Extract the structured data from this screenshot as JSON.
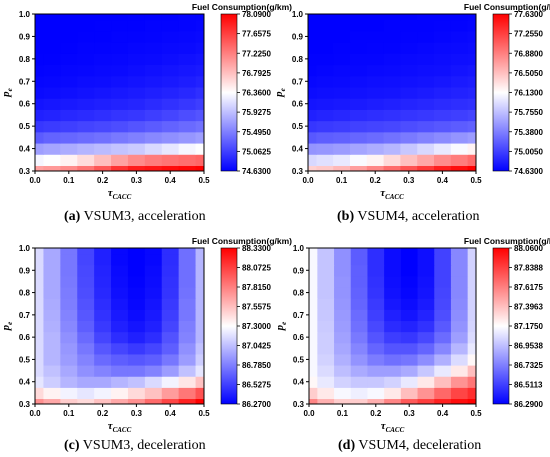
{
  "chart_data": [
    {
      "type": "heatmap",
      "caption_letter": "(a)",
      "caption_text": " VSUM3, acceleration",
      "legend_title": "Fuel Consumption(g/km)",
      "xlabel_main": "τ",
      "xlabel_sub": "CACC",
      "ylabel_main": "p",
      "ylabel_sub": "e",
      "x_ticks": [
        "0.0",
        "0.1",
        "0.2",
        "0.3",
        "0.4",
        "0.5"
      ],
      "y_ticks": [
        "0.3",
        "0.4",
        "0.5",
        "0.6",
        "0.7",
        "0.8",
        "0.9",
        "1.0"
      ],
      "xlim": [
        0.0,
        0.5
      ],
      "ylim": [
        0.3,
        1.0
      ],
      "colorbar_ticks": [
        "78.0900",
        "77.6575",
        "77.2250",
        "76.7925",
        "76.3600",
        "75.9275",
        "75.4950",
        "75.0625",
        "74.6300"
      ],
      "zlim": [
        74.63,
        78.09
      ],
      "colors": [
        "#0000ff",
        "#ffffff",
        "#ff0000"
      ],
      "x": [
        0.0,
        0.05,
        0.1,
        0.15,
        0.2,
        0.25,
        0.3,
        0.35,
        0.4,
        0.45,
        0.5
      ],
      "y": [
        0.3,
        0.35,
        0.4,
        0.45,
        0.5,
        0.55,
        0.6,
        0.65,
        0.7,
        0.75,
        0.8,
        0.85,
        0.9,
        0.95,
        1.0
      ],
      "z": [
        [
          77.0,
          77.05,
          77.15,
          77.3,
          77.5,
          77.75,
          77.9,
          77.95,
          78.0,
          78.05,
          78.09
        ],
        [
          76.3,
          76.35,
          76.45,
          76.6,
          76.8,
          77.0,
          77.15,
          77.25,
          77.3,
          77.35,
          77.4
        ],
        [
          75.7,
          75.75,
          75.8,
          75.85,
          75.9,
          75.95,
          76.0,
          76.1,
          76.2,
          76.3,
          76.35
        ],
        [
          75.25,
          75.3,
          75.33,
          75.36,
          75.4,
          75.45,
          75.5,
          75.55,
          75.6,
          75.65,
          75.7
        ],
        [
          75.0,
          75.03,
          75.06,
          75.09,
          75.12,
          75.15,
          75.2,
          75.25,
          75.3,
          75.35,
          75.4
        ],
        [
          74.85,
          74.87,
          74.9,
          74.92,
          74.95,
          74.98,
          75.0,
          75.05,
          75.1,
          75.15,
          75.2
        ],
        [
          74.76,
          74.78,
          74.8,
          74.82,
          74.84,
          74.86,
          74.88,
          74.92,
          74.96,
          75.0,
          75.05
        ],
        [
          74.7,
          74.71,
          74.73,
          74.75,
          74.77,
          74.79,
          74.81,
          74.84,
          74.87,
          74.9,
          74.95
        ],
        [
          74.67,
          74.68,
          74.69,
          74.71,
          74.72,
          74.74,
          74.76,
          74.78,
          74.8,
          74.83,
          74.86
        ],
        [
          74.65,
          74.66,
          74.67,
          74.68,
          74.69,
          74.7,
          74.72,
          74.74,
          74.76,
          74.78,
          74.8
        ],
        [
          74.64,
          74.64,
          74.65,
          74.66,
          74.67,
          74.68,
          74.69,
          74.7,
          74.72,
          74.74,
          74.76
        ],
        [
          74.63,
          74.63,
          74.64,
          74.65,
          74.65,
          74.66,
          74.67,
          74.68,
          74.69,
          74.7,
          74.72
        ],
        [
          74.63,
          74.63,
          74.63,
          74.64,
          74.64,
          74.65,
          74.65,
          74.66,
          74.67,
          74.68,
          74.69
        ],
        [
          74.63,
          74.63,
          74.63,
          74.63,
          74.64,
          74.64,
          74.64,
          74.65,
          74.65,
          74.66,
          74.67
        ],
        [
          74.63,
          74.63,
          74.63,
          74.63,
          74.63,
          74.63,
          74.64,
          74.64,
          74.64,
          74.65,
          74.65
        ]
      ]
    },
    {
      "type": "heatmap",
      "caption_letter": "(b)",
      "caption_text": " VSUM4, acceleration",
      "legend_title": "Fuel Consumption(g/km)",
      "xlabel_main": "τ",
      "xlabel_sub": "CACC",
      "ylabel_main": "p",
      "ylabel_sub": "e",
      "x_ticks": [
        "0.0",
        "0.1",
        "0.2",
        "0.3",
        "0.4",
        "0.5"
      ],
      "y_ticks": [
        "0.3",
        "0.4",
        "0.5",
        "0.6",
        "0.7",
        "0.8",
        "0.9",
        "1.0"
      ],
      "xlim": [
        0.0,
        0.5
      ],
      "ylim": [
        0.3,
        1.0
      ],
      "colorbar_ticks": [
        "77.6300",
        "77.2550",
        "76.8800",
        "76.5050",
        "76.1300",
        "75.7550",
        "75.3800",
        "75.0050",
        "74.6300"
      ],
      "zlim": [
        74.63,
        77.63
      ],
      "colors": [
        "#0000ff",
        "#ffffff",
        "#ff0000"
      ],
      "x": [
        0.0,
        0.05,
        0.1,
        0.15,
        0.2,
        0.25,
        0.3,
        0.35,
        0.4,
        0.45,
        0.5
      ],
      "y": [
        0.3,
        0.35,
        0.4,
        0.45,
        0.5,
        0.55,
        0.6,
        0.65,
        0.7,
        0.75,
        0.8,
        0.85,
        0.9,
        0.95,
        1.0
      ],
      "z": [
        [
          76.4,
          76.45,
          76.55,
          76.7,
          76.85,
          77.0,
          77.15,
          77.3,
          77.45,
          77.55,
          77.63
        ],
        [
          75.9,
          75.95,
          76.0,
          76.1,
          76.2,
          76.35,
          76.5,
          76.65,
          76.8,
          76.9,
          77.0
        ],
        [
          75.5,
          75.52,
          75.55,
          75.6,
          75.65,
          75.7,
          75.8,
          75.9,
          76.0,
          76.1,
          76.2
        ],
        [
          75.15,
          75.18,
          75.2,
          75.23,
          75.26,
          75.3,
          75.35,
          75.4,
          75.45,
          75.5,
          75.55
        ],
        [
          74.95,
          74.97,
          74.99,
          75.01,
          75.03,
          75.05,
          75.08,
          75.11,
          75.14,
          75.17,
          75.2
        ],
        [
          74.82,
          74.84,
          74.86,
          74.88,
          74.9,
          74.92,
          74.94,
          74.96,
          74.98,
          75.0,
          75.03
        ],
        [
          74.75,
          74.76,
          74.77,
          74.78,
          74.8,
          74.82,
          74.84,
          74.86,
          74.88,
          74.9,
          74.92
        ],
        [
          74.7,
          74.71,
          74.72,
          74.73,
          74.74,
          74.75,
          74.77,
          74.79,
          74.81,
          74.83,
          74.85
        ],
        [
          74.67,
          74.68,
          74.69,
          74.7,
          74.71,
          74.72,
          74.73,
          74.74,
          74.76,
          74.78,
          74.8
        ],
        [
          74.65,
          74.66,
          74.67,
          74.67,
          74.68,
          74.69,
          74.7,
          74.71,
          74.72,
          74.74,
          74.76
        ],
        [
          74.64,
          74.64,
          74.65,
          74.66,
          74.66,
          74.67,
          74.68,
          74.69,
          74.7,
          74.71,
          74.72
        ],
        [
          74.63,
          74.63,
          74.64,
          74.64,
          74.65,
          74.65,
          74.66,
          74.67,
          74.68,
          74.69,
          74.7
        ],
        [
          74.63,
          74.63,
          74.63,
          74.64,
          74.64,
          74.64,
          74.65,
          74.65,
          74.66,
          74.67,
          74.68
        ],
        [
          74.63,
          74.63,
          74.63,
          74.63,
          74.63,
          74.64,
          74.64,
          74.64,
          74.65,
          74.65,
          74.66
        ],
        [
          74.63,
          74.63,
          74.63,
          74.63,
          74.63,
          74.63,
          74.63,
          74.64,
          74.64,
          74.64,
          74.65
        ]
      ]
    },
    {
      "type": "heatmap",
      "caption_letter": "(c)",
      "caption_text": " VSUM3, deceleration",
      "legend_title": "Fuel Consumption(g/km)",
      "xlabel_main": "τ",
      "xlabel_sub": "CACC",
      "ylabel_main": "p",
      "ylabel_sub": "e",
      "x_ticks": [
        "0.0",
        "0.1",
        "0.2",
        "0.3",
        "0.4",
        "0.5"
      ],
      "y_ticks": [
        "0.3",
        "0.4",
        "0.5",
        "0.6",
        "0.7",
        "0.8",
        "0.9",
        "1.0"
      ],
      "xlim": [
        0.0,
        0.5
      ],
      "ylim": [
        0.3,
        1.0
      ],
      "colorbar_ticks": [
        "88.3300",
        "88.0725",
        "87.8150",
        "87.5575",
        "87.3000",
        "87.0425",
        "86.7850",
        "86.5275",
        "86.2700"
      ],
      "zlim": [
        86.27,
        88.33
      ],
      "colors": [
        "#0000ff",
        "#ffffff",
        "#ff0000"
      ],
      "x": [
        0.0,
        0.05,
        0.1,
        0.15,
        0.2,
        0.25,
        0.3,
        0.35,
        0.4,
        0.45,
        0.5
      ],
      "y": [
        0.3,
        0.35,
        0.4,
        0.45,
        0.5,
        0.55,
        0.6,
        0.65,
        0.7,
        0.75,
        0.8,
        0.85,
        0.9,
        0.95,
        1.0
      ],
      "z": [
        [
          87.75,
          87.65,
          87.5,
          87.45,
          87.55,
          87.65,
          87.75,
          87.9,
          88.05,
          88.2,
          88.33
        ],
        [
          87.45,
          87.35,
          87.25,
          87.2,
          87.25,
          87.35,
          87.45,
          87.55,
          87.7,
          87.85,
          88.0
        ],
        [
          87.2,
          87.1,
          87.0,
          86.95,
          86.95,
          87.0,
          87.05,
          87.15,
          87.25,
          87.4,
          87.55
        ],
        [
          87.15,
          87.05,
          86.95,
          86.85,
          86.8,
          86.75,
          86.75,
          86.8,
          86.9,
          87.05,
          87.2
        ],
        [
          87.15,
          87.0,
          86.9,
          86.8,
          86.7,
          86.65,
          86.62,
          86.65,
          86.75,
          86.9,
          87.1
        ],
        [
          87.15,
          87.0,
          86.88,
          86.75,
          86.62,
          86.55,
          86.5,
          86.55,
          86.65,
          86.85,
          87.05
        ],
        [
          87.15,
          87.0,
          86.85,
          86.7,
          86.55,
          86.45,
          86.4,
          86.45,
          86.6,
          86.8,
          87.0
        ],
        [
          87.15,
          86.98,
          86.82,
          86.65,
          86.5,
          86.4,
          86.35,
          86.4,
          86.55,
          86.78,
          87.0
        ],
        [
          87.15,
          86.97,
          86.8,
          86.62,
          86.47,
          86.37,
          86.32,
          86.37,
          86.52,
          86.75,
          87.0
        ],
        [
          87.15,
          86.96,
          86.78,
          86.6,
          86.45,
          86.35,
          86.3,
          86.35,
          86.5,
          86.75,
          87.0
        ],
        [
          87.15,
          86.95,
          86.77,
          86.58,
          86.43,
          86.33,
          86.29,
          86.33,
          86.48,
          86.73,
          87.0
        ],
        [
          87.15,
          86.95,
          86.76,
          86.57,
          86.42,
          86.32,
          86.28,
          86.32,
          86.47,
          86.72,
          87.0
        ],
        [
          87.15,
          86.95,
          86.75,
          86.56,
          86.41,
          86.31,
          86.27,
          86.31,
          86.46,
          86.72,
          87.0
        ],
        [
          87.15,
          86.95,
          86.75,
          86.55,
          86.4,
          86.3,
          86.27,
          86.3,
          86.45,
          86.72,
          87.0
        ],
        [
          87.15,
          86.95,
          86.75,
          86.55,
          86.4,
          86.3,
          86.27,
          86.3,
          86.45,
          86.72,
          87.0
        ]
      ]
    },
    {
      "type": "heatmap",
      "caption_letter": "(d)",
      "caption_text": " VSUM4, deceleration",
      "legend_title": "Fuel Consumption(g/km)",
      "xlabel_main": "τ",
      "xlabel_sub": "CACC",
      "ylabel_main": "p",
      "ylabel_sub": "e",
      "x_ticks": [
        "0.0",
        "0.1",
        "0.2",
        "0.3",
        "0.4",
        "0.5"
      ],
      "y_ticks": [
        "0.3",
        "0.4",
        "0.5",
        "0.6",
        "0.7",
        "0.8",
        "0.9",
        "1.0"
      ],
      "xlim": [
        0.0,
        0.5
      ],
      "ylim": [
        0.3,
        1.0
      ],
      "colorbar_ticks": [
        "88.0600",
        "87.8388",
        "87.6175",
        "87.3963",
        "87.1750",
        "86.9538",
        "86.7325",
        "86.5113",
        "86.2900"
      ],
      "zlim": [
        86.29,
        88.06
      ],
      "colors": [
        "#0000ff",
        "#ffffff",
        "#ff0000"
      ],
      "x": [
        0.0,
        0.05,
        0.1,
        0.15,
        0.2,
        0.25,
        0.3,
        0.35,
        0.4,
        0.45,
        0.5
      ],
      "y": [
        0.3,
        0.35,
        0.4,
        0.45,
        0.5,
        0.55,
        0.6,
        0.65,
        0.7,
        0.75,
        0.8,
        0.85,
        0.9,
        0.95,
        1.0
      ],
      "z": [
        [
          87.6,
          87.45,
          87.35,
          87.35,
          87.45,
          87.6,
          87.75,
          87.85,
          87.95,
          88.02,
          88.06
        ],
        [
          87.35,
          87.25,
          87.15,
          87.12,
          87.15,
          87.25,
          87.4,
          87.55,
          87.7,
          87.82,
          87.9
        ],
        [
          87.2,
          87.1,
          87.02,
          86.98,
          86.98,
          87.02,
          87.1,
          87.25,
          87.4,
          87.55,
          87.65
        ],
        [
          87.15,
          87.05,
          86.95,
          86.88,
          86.84,
          86.84,
          86.88,
          86.98,
          87.1,
          87.25,
          87.4
        ],
        [
          87.15,
          87.02,
          86.9,
          86.8,
          86.72,
          86.68,
          86.7,
          86.78,
          86.9,
          87.05,
          87.2
        ],
        [
          87.15,
          87.0,
          86.87,
          86.75,
          86.64,
          86.58,
          86.58,
          86.64,
          86.76,
          86.92,
          87.1
        ],
        [
          87.15,
          87.0,
          86.85,
          86.71,
          86.58,
          86.5,
          86.48,
          86.54,
          86.66,
          86.84,
          87.05
        ],
        [
          87.15,
          86.99,
          86.83,
          86.68,
          86.54,
          86.44,
          86.41,
          86.46,
          86.6,
          86.8,
          87.03
        ],
        [
          87.15,
          86.98,
          86.82,
          86.66,
          86.51,
          86.4,
          86.36,
          86.41,
          86.56,
          86.78,
          87.02
        ],
        [
          87.15,
          86.98,
          86.81,
          86.64,
          86.49,
          86.37,
          86.33,
          86.38,
          86.54,
          86.77,
          87.02
        ],
        [
          87.15,
          86.97,
          86.8,
          86.63,
          86.47,
          86.35,
          86.31,
          86.36,
          86.53,
          86.76,
          87.02
        ],
        [
          87.15,
          86.97,
          86.8,
          86.62,
          86.46,
          86.34,
          86.3,
          86.35,
          86.52,
          86.76,
          87.02
        ],
        [
          87.15,
          86.97,
          86.79,
          86.62,
          86.45,
          86.33,
          86.29,
          86.34,
          86.52,
          86.76,
          87.02
        ],
        [
          87.15,
          86.97,
          86.79,
          86.61,
          86.45,
          86.33,
          86.29,
          86.34,
          86.52,
          86.76,
          87.02
        ],
        [
          87.15,
          86.97,
          86.79,
          86.61,
          86.45,
          86.33,
          86.29,
          86.34,
          86.52,
          86.76,
          87.02
        ]
      ]
    }
  ]
}
